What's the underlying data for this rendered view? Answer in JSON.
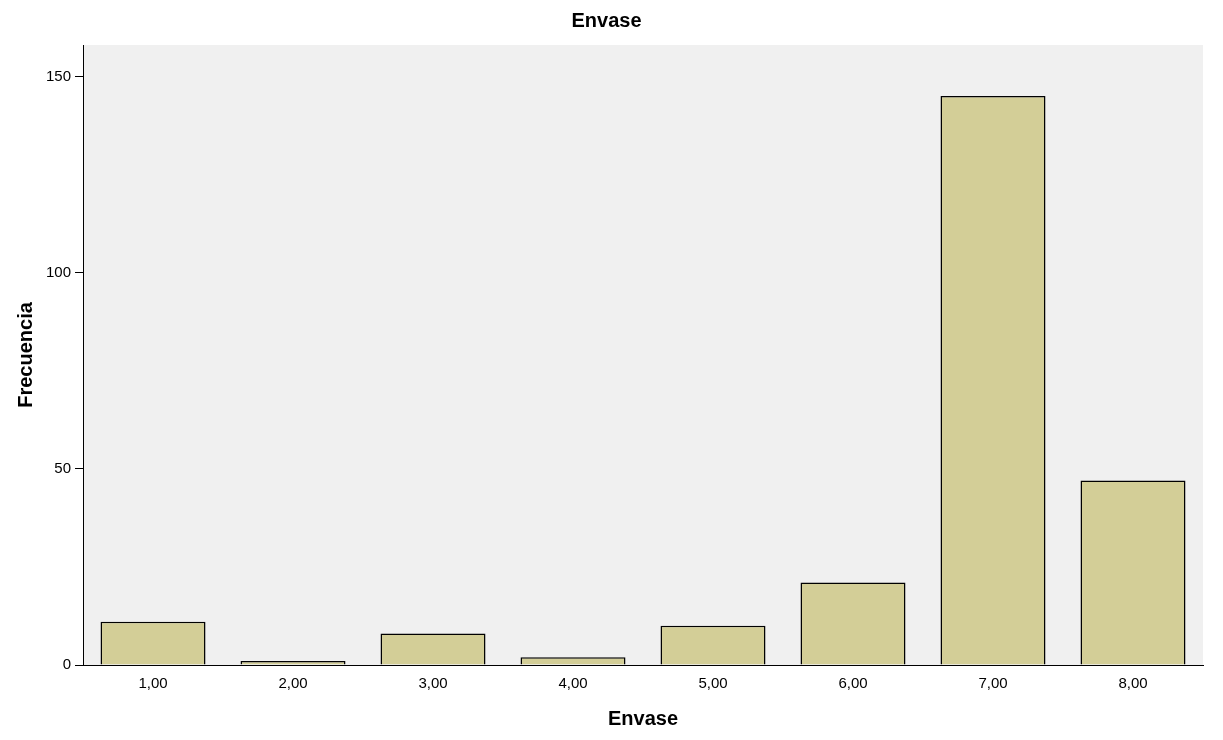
{
  "chart_data": {
    "type": "bar",
    "title": "Envase",
    "xlabel": "Envase",
    "ylabel": "Frecuencia",
    "categories": [
      "1,00",
      "2,00",
      "3,00",
      "4,00",
      "5,00",
      "6,00",
      "7,00",
      "8,00"
    ],
    "values": [
      11,
      1,
      8,
      2,
      10,
      21,
      145,
      47
    ],
    "color": "#d3ce97",
    "ylim": [
      0,
      158
    ],
    "yticks": [
      0,
      50,
      100,
      150
    ],
    "grid": false,
    "legend": false
  }
}
